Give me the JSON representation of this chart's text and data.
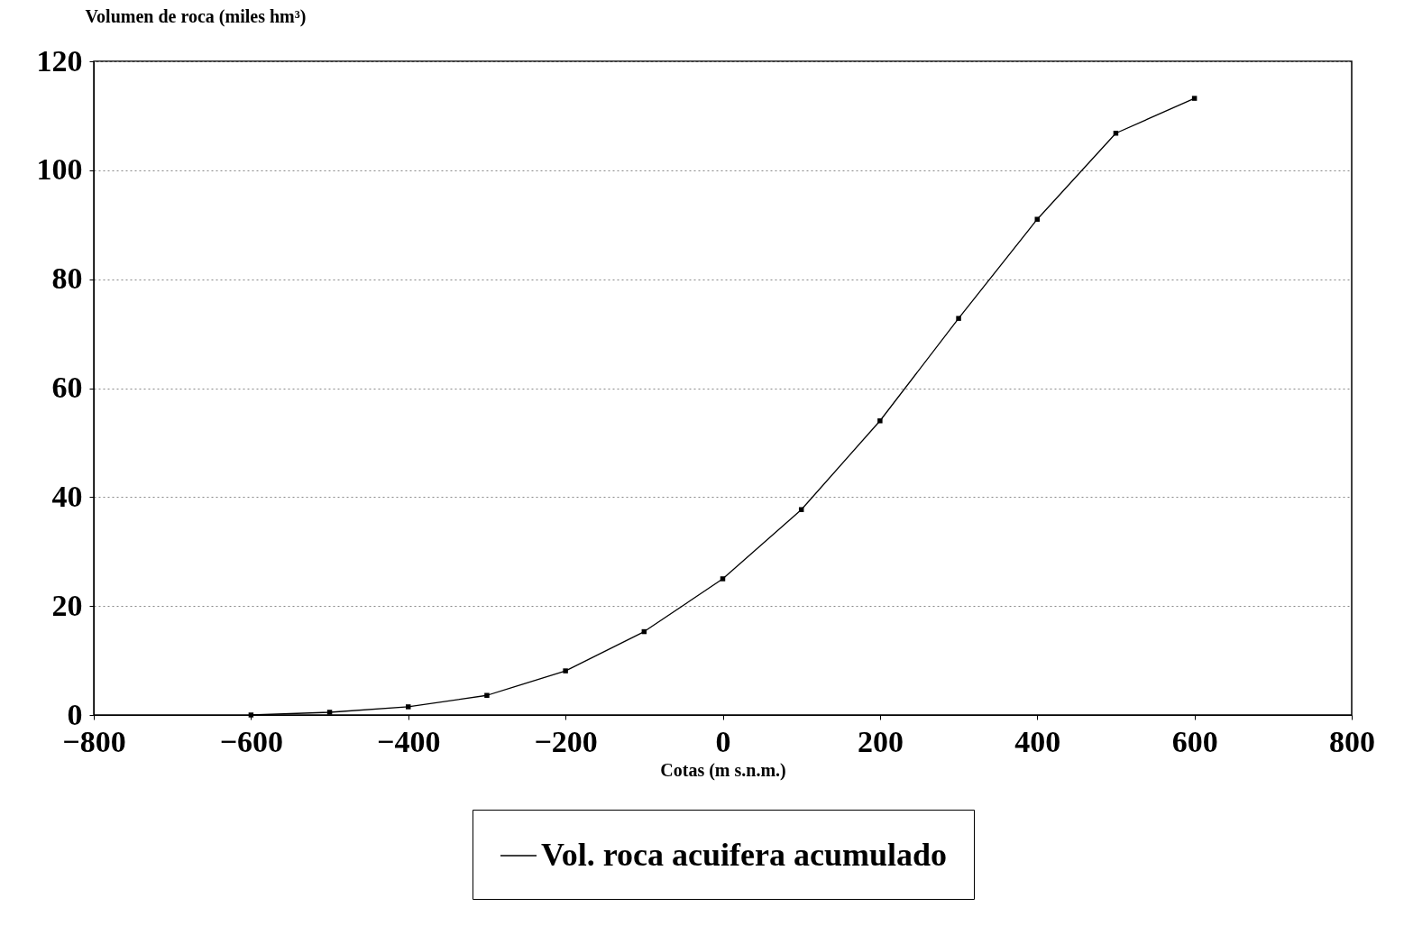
{
  "chart_data": {
    "type": "line",
    "xlabel": "Cotas (m s.n.m.)",
    "ylabel": "Volumen de roca (miles hm³)",
    "x": [
      -600,
      -500,
      -400,
      -300,
      -200,
      -100,
      0,
      100,
      200,
      300,
      400,
      500,
      600
    ],
    "series": [
      {
        "name": "Vol. roca acuifera acumulado",
        "color": "#000000",
        "values": [
          0,
          0.5,
          1.5,
          3.6,
          8.1,
          15.3,
          25,
          37.7,
          54,
          72.8,
          91,
          106.8,
          113.2
        ]
      }
    ],
    "xlim": [
      -800,
      800
    ],
    "xticks": [
      -800,
      -600,
      -400,
      -200,
      0,
      200,
      400,
      600,
      800
    ],
    "ylim": [
      0,
      120
    ],
    "yticks": [
      0,
      20,
      40,
      60,
      80,
      100,
      120
    ],
    "grid": "y",
    "legend": "bottom",
    "marker": "square",
    "line_style": "solid"
  }
}
